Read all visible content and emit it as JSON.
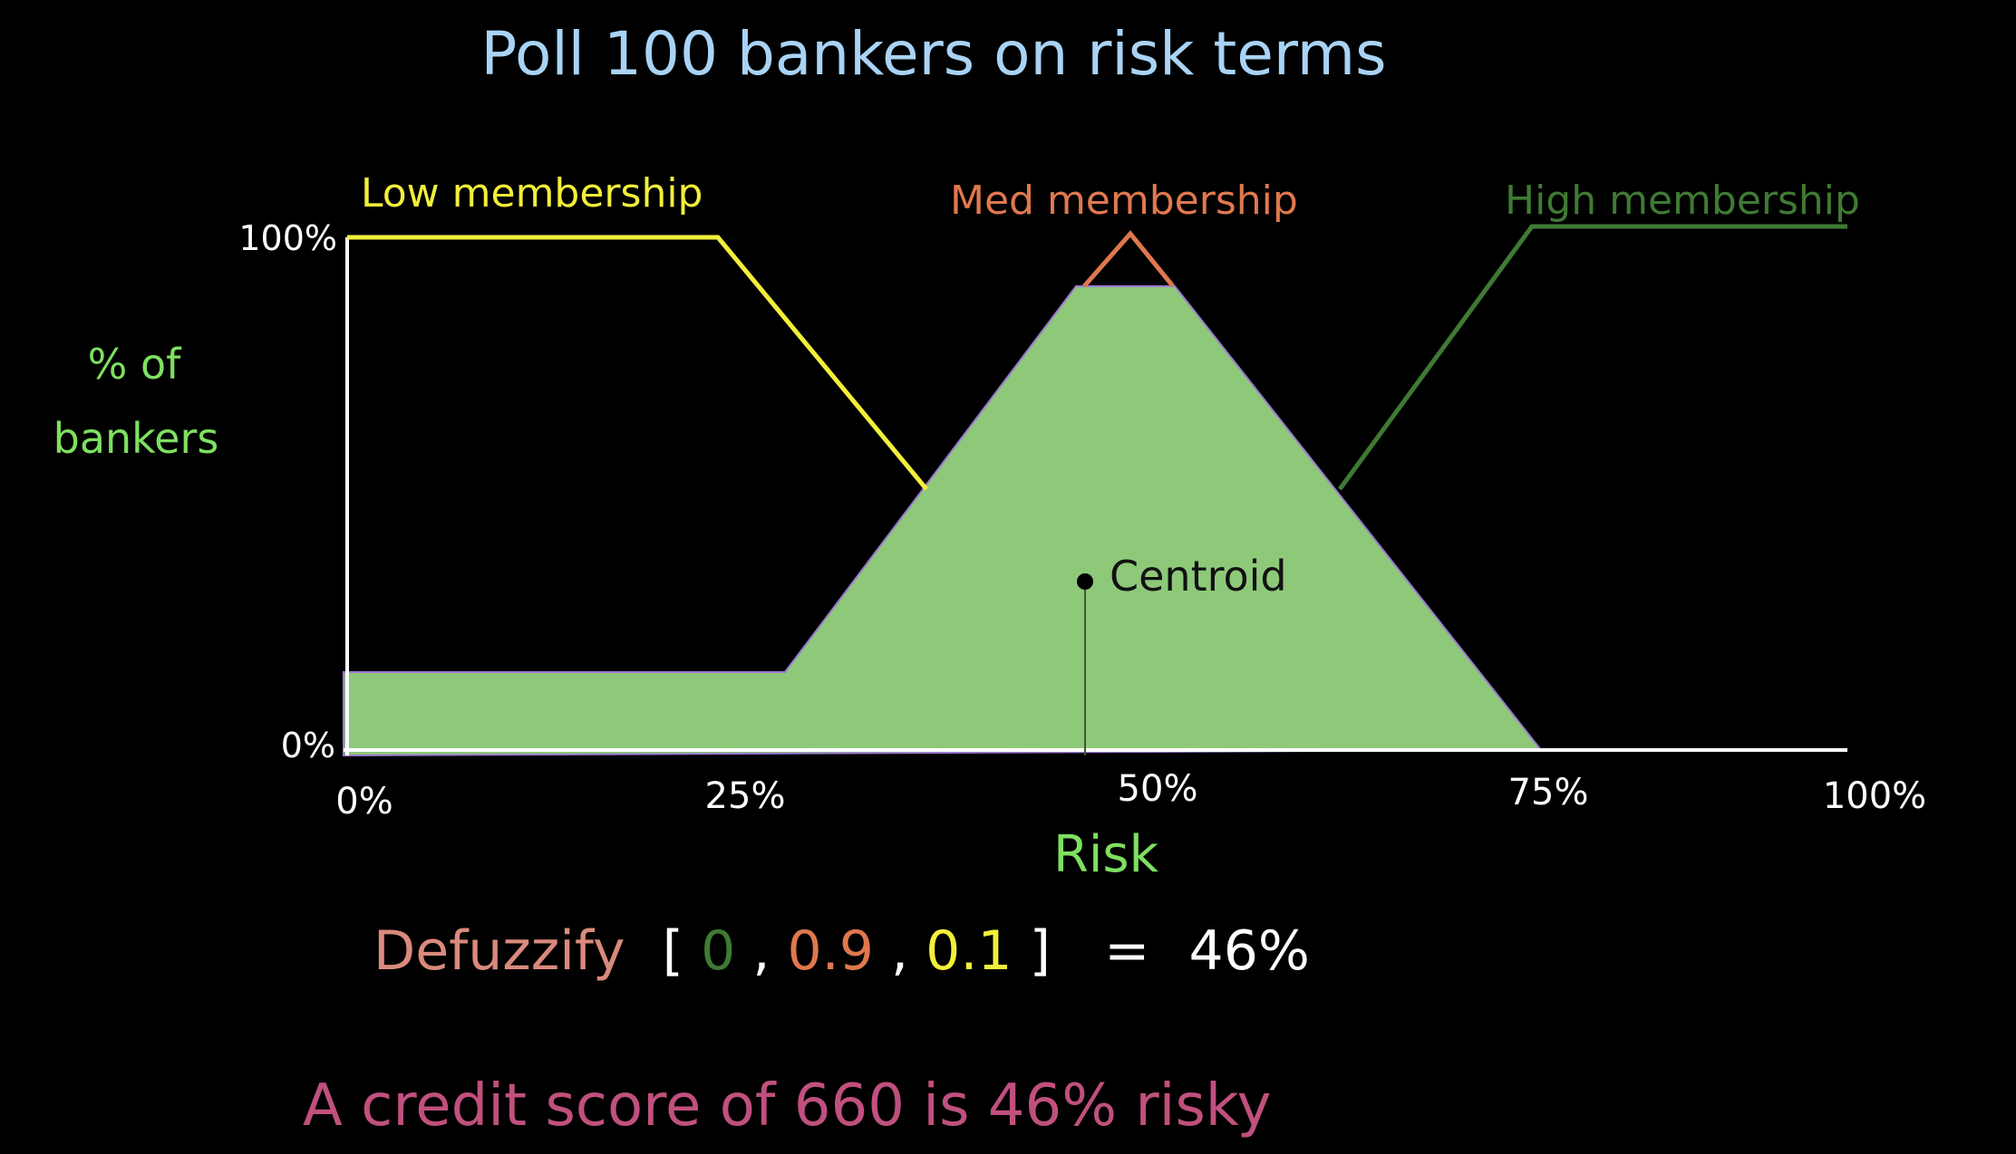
{
  "title": "Poll 100 bankers on risk terms",
  "series_labels": {
    "low": "Low membership",
    "med": "Med membership",
    "high": "High membership"
  },
  "y_axis": {
    "label_line1": "% of",
    "label_line2": "bankers",
    "tick_top": "100%",
    "tick_bottom": "0%"
  },
  "x_axis": {
    "label": "Risk",
    "ticks": [
      "0%",
      "25%",
      "50%",
      "75%",
      "100%"
    ]
  },
  "centroid_label": "Centroid",
  "defuzzify": {
    "word": "Defuzzify",
    "open_bracket": "[",
    "v_high": "0",
    "comma1": ",",
    "v_med": "0.9",
    "comma2": ",",
    "v_low": "0.1",
    "close_bracket": "]",
    "equals": "=",
    "result": "46%"
  },
  "conclusion": "A credit score of 660 is 46% risky",
  "colors": {
    "background": "#000000",
    "title": "#a9d3f5",
    "low": "#f2ef3a",
    "med": "#e0784e",
    "high": "#3f7a33",
    "axis_label": "#7ee060",
    "fill": "#8ec97a",
    "text_white": "#ffffff",
    "defuzzify_word": "#d98a7c",
    "conclusion": "#c0507e"
  }
}
